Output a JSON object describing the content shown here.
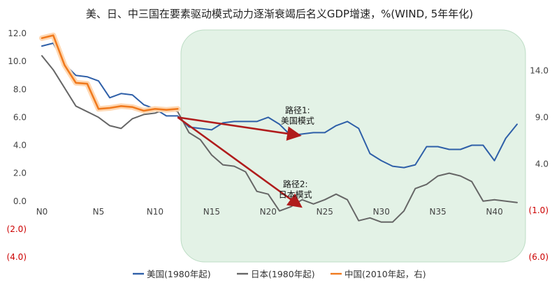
{
  "chart_data": {
    "type": "line",
    "title": "美、日、中三国在要素驱动模式动力逐渐衰竭后名义GDP增速，%(WIND, 5年年化)",
    "colors": {
      "us": "#2e5fa8",
      "jp": "#666666",
      "cn": "#f07a1e",
      "cn_glow": "#ffd8b3",
      "arrow": "#b01c1c",
      "zone_fill": "#e3f2e6",
      "zone_stroke": "#bcdcc4"
    },
    "x_axis": {
      "min": 0,
      "max": 42,
      "ticks": [
        {
          "value": 0,
          "label": "N0"
        },
        {
          "value": 5,
          "label": "N5"
        },
        {
          "value": 10,
          "label": "N10"
        },
        {
          "value": 15,
          "label": "N15"
        },
        {
          "value": 20,
          "label": "N20"
        },
        {
          "value": 25,
          "label": "N25"
        },
        {
          "value": 30,
          "label": "N30"
        },
        {
          "value": 35,
          "label": "N35"
        },
        {
          "value": 40,
          "label": "N40"
        }
      ]
    },
    "y_left": {
      "min": -4,
      "max": 12,
      "ticks": [
        {
          "value": 12,
          "label": "12.0"
        },
        {
          "value": 10,
          "label": "10.0"
        },
        {
          "value": 8,
          "label": "8.0"
        },
        {
          "value": 6,
          "label": "6.0"
        },
        {
          "value": 4,
          "label": "4.0"
        },
        {
          "value": 2,
          "label": "2.0"
        },
        {
          "value": 0,
          "label": "0.0"
        },
        {
          "value": -2,
          "label": "(2.0)"
        },
        {
          "value": -4,
          "label": "(4.0)"
        }
      ]
    },
    "y_right": {
      "min": -6,
      "max": 18,
      "ticks": [
        {
          "value": 14,
          "label": "14.0"
        },
        {
          "value": 9,
          "label": "9.0"
        },
        {
          "value": 4,
          "label": "4.0"
        },
        {
          "value": -1,
          "label": "(1.0)"
        },
        {
          "value": -6,
          "label": "(6.0)"
        }
      ]
    },
    "series": [
      {
        "name": "美国(1980年起)",
        "key": "us",
        "axis": "left",
        "x": [
          0,
          1,
          2,
          3,
          4,
          5,
          6,
          7,
          8,
          9,
          10,
          11,
          12,
          13,
          14,
          15,
          16,
          17,
          18,
          19,
          20,
          21,
          22,
          23,
          24,
          25,
          26,
          27,
          28,
          29,
          30,
          31,
          32,
          33,
          34,
          35,
          36,
          37,
          38,
          39,
          40,
          41,
          42
        ],
        "values": [
          11.1,
          11.3,
          9.8,
          9.0,
          8.9,
          8.6,
          7.4,
          7.7,
          7.6,
          6.9,
          6.6,
          6.1,
          6.1,
          5.3,
          5.2,
          5.1,
          5.6,
          5.7,
          5.7,
          5.7,
          6.0,
          5.5,
          4.7,
          4.8,
          4.9,
          4.9,
          5.4,
          5.7,
          5.2,
          3.4,
          2.9,
          2.5,
          2.4,
          2.6,
          3.9,
          3.9,
          3.7,
          3.7,
          4.0,
          4.0,
          2.9,
          4.5,
          5.5
        ]
      },
      {
        "name": "日本(1980年起)",
        "key": "jp",
        "axis": "left",
        "x": [
          0,
          1,
          2,
          3,
          4,
          5,
          6,
          7,
          8,
          9,
          10,
          11,
          12,
          13,
          14,
          15,
          16,
          17,
          18,
          19,
          20,
          21,
          22,
          23,
          24,
          25,
          26,
          27,
          28,
          29,
          30,
          31,
          32,
          33,
          34,
          35,
          36,
          37,
          38,
          39,
          40,
          41,
          42
        ],
        "values": [
          10.4,
          9.4,
          8.1,
          6.8,
          6.4,
          6.0,
          5.4,
          5.2,
          5.9,
          6.2,
          6.3,
          6.6,
          6.4,
          4.9,
          4.4,
          3.3,
          2.6,
          2.5,
          2.1,
          0.7,
          0.5,
          -0.7,
          -0.4,
          0.1,
          -0.2,
          0.1,
          0.5,
          0.1,
          -1.4,
          -1.2,
          -1.5,
          -1.5,
          -0.7,
          0.9,
          1.2,
          1.8,
          2.0,
          1.8,
          1.4,
          0.0,
          0.1,
          0.0,
          -0.1
        ]
      },
      {
        "name": "中国(2010年起，右)",
        "key": "cn",
        "axis": "right",
        "x": [
          0,
          1,
          2,
          3,
          4,
          5,
          6,
          7,
          8,
          9,
          10,
          11,
          12
        ],
        "values": [
          17.5,
          17.8,
          14.6,
          12.7,
          12.6,
          9.9,
          10.0,
          10.2,
          10.1,
          9.7,
          9.9,
          9.8,
          9.9
        ]
      }
    ],
    "annotations": [
      {
        "key": "us_path",
        "lines": [
          "路径1:",
          "美国模式"
        ],
        "x": 22.6,
        "y": 6.3
      },
      {
        "key": "jp_path",
        "lines": [
          "路径2:",
          "日本模式"
        ],
        "x": 22.4,
        "y": 1.0
      }
    ],
    "legend": {
      "position": "bottom"
    }
  }
}
